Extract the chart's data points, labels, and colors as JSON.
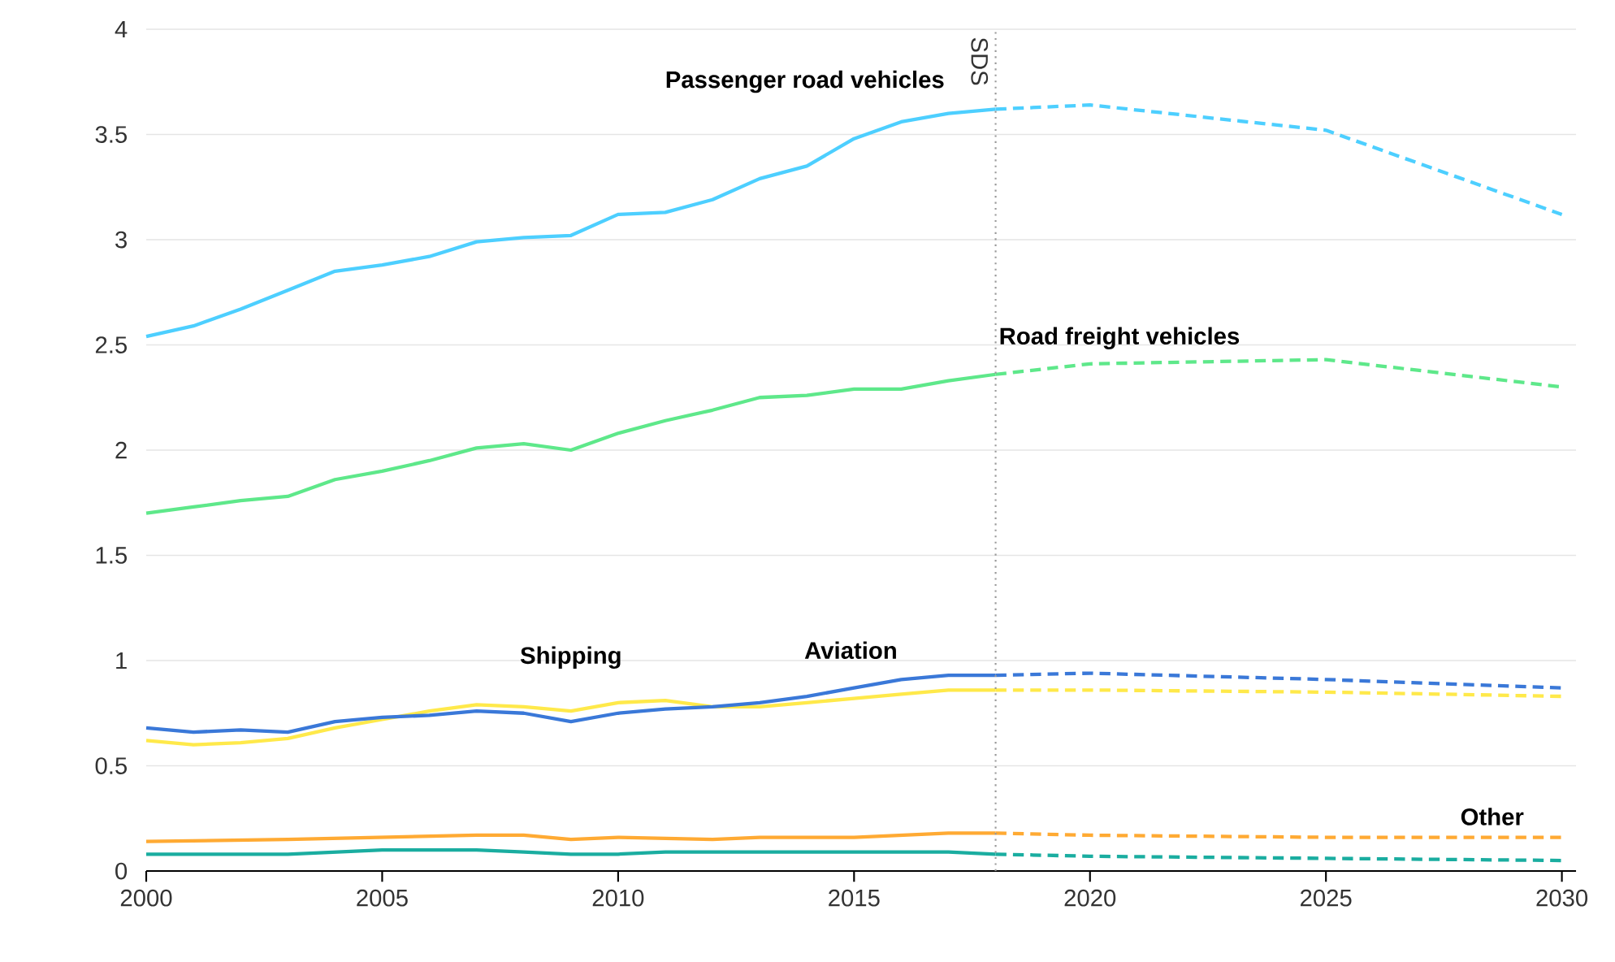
{
  "chart_data": {
    "type": "line",
    "xlim": [
      2000,
      2030.3
    ],
    "ylim": [
      0,
      4
    ],
    "xticks": [
      2000,
      2005,
      2010,
      2015,
      2020,
      2025,
      2030
    ],
    "yticks": [
      0,
      0.5,
      1,
      1.5,
      2,
      2.5,
      3,
      3.5,
      4
    ],
    "grid": "y",
    "series": [
      {
        "name": "Passenger road vehicles",
        "color": "#4dcfff",
        "line_style": "solid",
        "x": [
          2000,
          2001,
          2002,
          2003,
          2004,
          2005,
          2006,
          2007,
          2008,
          2009,
          2010,
          2011,
          2012,
          2013,
          2014,
          2015,
          2016,
          2017,
          2018
        ],
        "values": [
          2.54,
          2.59,
          2.67,
          2.76,
          2.85,
          2.88,
          2.92,
          2.99,
          3.01,
          3.02,
          3.12,
          3.13,
          3.19,
          3.29,
          3.35,
          3.48,
          3.56,
          3.6,
          3.62
        ]
      },
      {
        "color": "#4dcfff",
        "line_style": "dashed",
        "x": [
          2018,
          2020,
          2025,
          2030
        ],
        "values": [
          3.62,
          3.64,
          3.52,
          3.12
        ]
      },
      {
        "name": "Road freight vehicles",
        "color": "#5ee88a",
        "line_style": "solid",
        "x": [
          2000,
          2001,
          2002,
          2003,
          2004,
          2005,
          2006,
          2007,
          2008,
          2009,
          2010,
          2011,
          2012,
          2013,
          2014,
          2015,
          2016,
          2017,
          2018
        ],
        "values": [
          1.7,
          1.73,
          1.76,
          1.78,
          1.86,
          1.9,
          1.95,
          2.01,
          2.03,
          2.0,
          2.08,
          2.14,
          2.19,
          2.25,
          2.26,
          2.29,
          2.29,
          2.33,
          2.36
        ]
      },
      {
        "color": "#5ee88a",
        "line_style": "dashed",
        "x": [
          2018,
          2020,
          2025,
          2030
        ],
        "values": [
          2.36,
          2.41,
          2.43,
          2.3
        ]
      },
      {
        "name": "Shipping",
        "color": "#ffe94a",
        "line_style": "solid",
        "x": [
          2000,
          2001,
          2002,
          2003,
          2004,
          2005,
          2006,
          2007,
          2008,
          2009,
          2010,
          2011,
          2012,
          2013,
          2014,
          2015,
          2016,
          2017,
          2018
        ],
        "values": [
          0.62,
          0.6,
          0.61,
          0.63,
          0.68,
          0.72,
          0.76,
          0.79,
          0.78,
          0.76,
          0.8,
          0.81,
          0.78,
          0.78,
          0.8,
          0.82,
          0.84,
          0.86,
          0.86
        ]
      },
      {
        "color": "#ffe94a",
        "line_style": "dashed",
        "x": [
          2018,
          2020,
          2025,
          2030
        ],
        "values": [
          0.86,
          0.86,
          0.85,
          0.83
        ]
      },
      {
        "name": "Aviation",
        "color": "#3a78d8",
        "line_style": "solid",
        "x": [
          2000,
          2001,
          2002,
          2003,
          2004,
          2005,
          2006,
          2007,
          2008,
          2009,
          2010,
          2011,
          2012,
          2013,
          2014,
          2015,
          2016,
          2017,
          2018
        ],
        "values": [
          0.68,
          0.66,
          0.67,
          0.66,
          0.71,
          0.73,
          0.74,
          0.76,
          0.75,
          0.71,
          0.75,
          0.77,
          0.78,
          0.8,
          0.83,
          0.87,
          0.91,
          0.93,
          0.93
        ]
      },
      {
        "color": "#3a78d8",
        "line_style": "dashed",
        "x": [
          2018,
          2020,
          2025,
          2030
        ],
        "values": [
          0.93,
          0.94,
          0.91,
          0.87
        ]
      },
      {
        "color": "#ffaa33",
        "line_style": "solid",
        "x": [
          2000,
          2003,
          2005,
          2007,
          2008,
          2009,
          2010,
          2012,
          2013,
          2015,
          2017,
          2018
        ],
        "values": [
          0.14,
          0.15,
          0.16,
          0.17,
          0.17,
          0.15,
          0.16,
          0.15,
          0.16,
          0.16,
          0.18,
          0.18
        ]
      },
      {
        "name": "Other",
        "color": "#ffaa33",
        "line_style": "dashed",
        "x": [
          2018,
          2020,
          2025,
          2030
        ],
        "values": [
          0.18,
          0.17,
          0.16,
          0.16
        ]
      },
      {
        "color": "#1aada0",
        "line_style": "solid",
        "x": [
          2000,
          2003,
          2005,
          2007,
          2008,
          2009,
          2010,
          2011,
          2015,
          2017,
          2018
        ],
        "values": [
          0.08,
          0.08,
          0.1,
          0.1,
          0.09,
          0.08,
          0.08,
          0.09,
          0.09,
          0.09,
          0.08
        ]
      },
      {
        "color": "#1aada0",
        "line_style": "dashed",
        "x": [
          2018,
          2020,
          2025,
          2030
        ],
        "values": [
          0.08,
          0.07,
          0.06,
          0.05
        ]
      }
    ],
    "ref_lines": [
      {
        "axis": "x",
        "value": 2018,
        "label": "SDS",
        "color": "#999999",
        "line_style": "dotted"
      }
    ]
  }
}
